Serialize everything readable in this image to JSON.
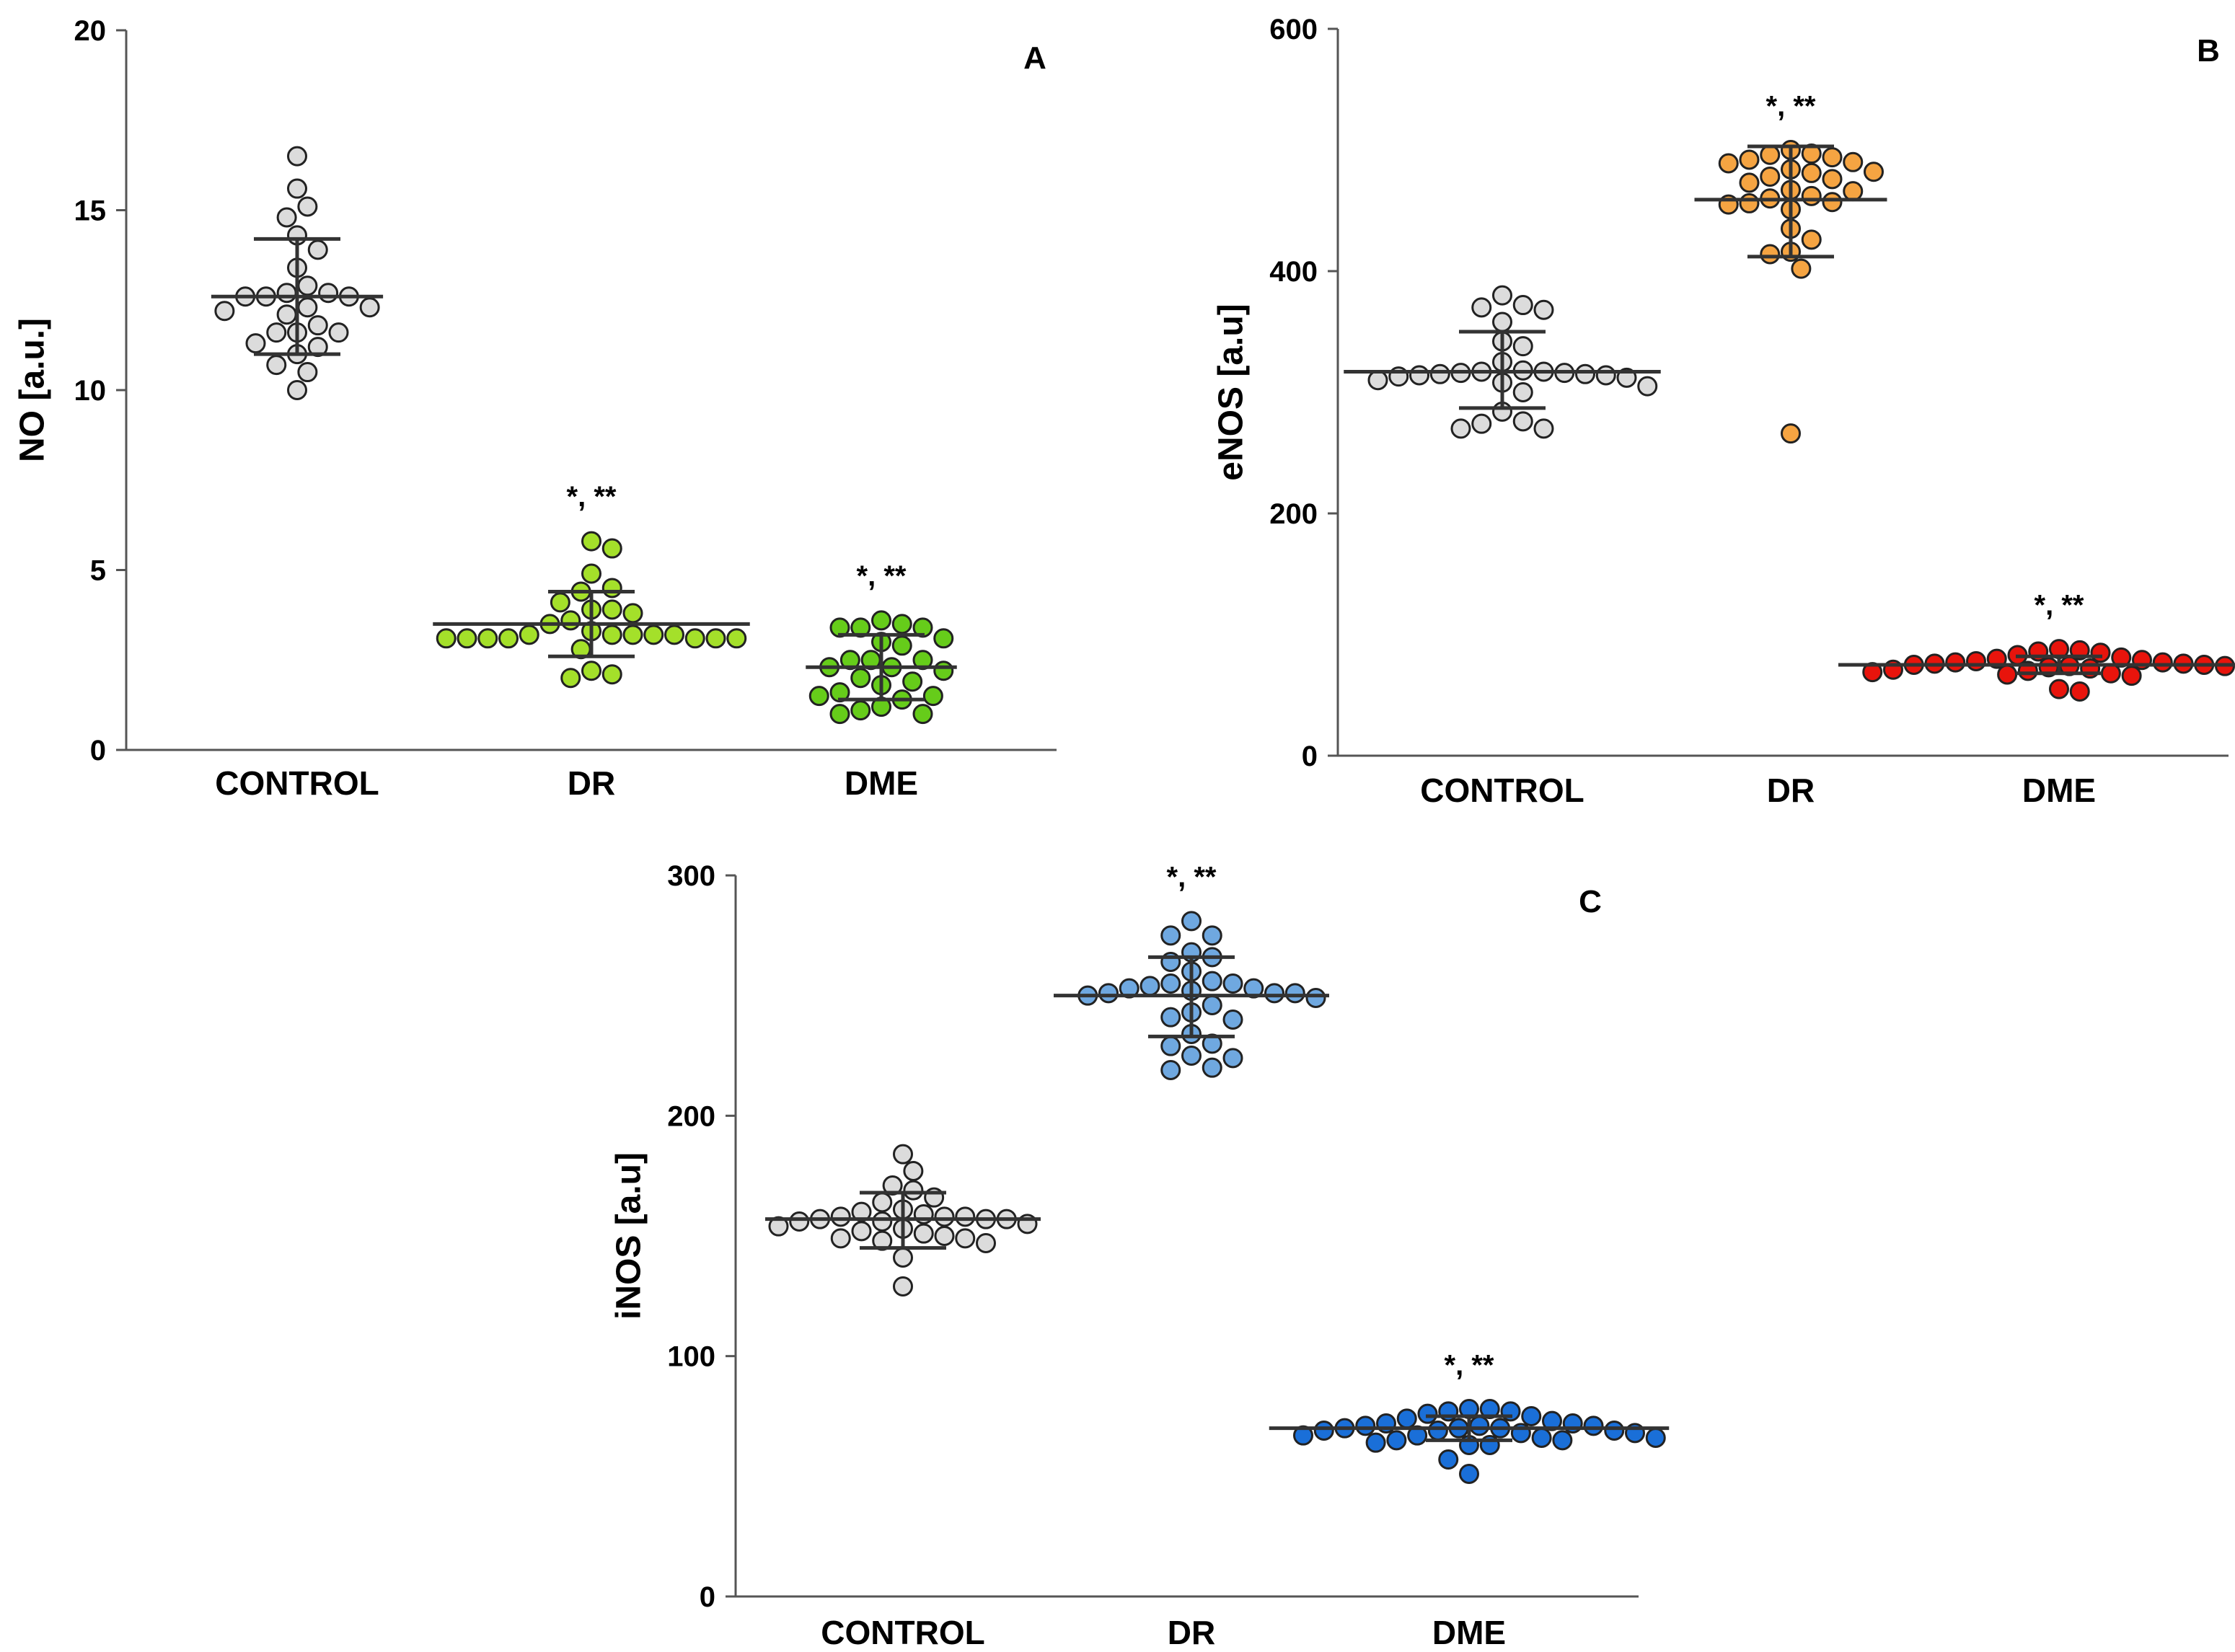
{
  "chart_data": [
    {
      "id": "A",
      "type": "scatter",
      "panel_label": "A",
      "ylabel": "NO [a.u.]",
      "ylim": [
        0,
        20
      ],
      "yticks": [
        "0",
        "5",
        "10",
        "15",
        "20"
      ],
      "categories": [
        "CONTROL",
        "DR",
        "DME"
      ],
      "groups": [
        {
          "name": "CONTROL",
          "color": "#dcdcdc",
          "mean": 12.6,
          "sd_low": 11.0,
          "sd_high": 14.2,
          "sig": "",
          "values": [
            16.5,
            15.6,
            15.1,
            14.8,
            14.3,
            13.9,
            13.4,
            12.9,
            12.7,
            12.7,
            12.6,
            12.6,
            12.6,
            12.3,
            12.3,
            12.2,
            12.1,
            11.8,
            11.6,
            11.6,
            11.6,
            11.3,
            11.2,
            11.0,
            10.7,
            10.5,
            10.0
          ]
        },
        {
          "name": "DR",
          "color": "#a4e02a",
          "mean": 3.5,
          "sd_low": 2.6,
          "sd_high": 4.4,
          "sig": "*,**",
          "values": [
            5.8,
            5.6,
            4.9,
            4.5,
            4.4,
            4.1,
            3.9,
            3.9,
            3.8,
            3.6,
            3.5,
            3.3,
            3.2,
            3.2,
            3.2,
            3.2,
            3.2,
            3.1,
            3.1,
            3.1,
            3.1,
            3.1,
            3.1,
            3.1,
            2.8,
            2.2,
            2.1,
            2.0
          ]
        },
        {
          "name": "DME",
          "color": "#66cc1a",
          "mean": 2.3,
          "sd_low": 1.4,
          "sd_high": 3.2,
          "sig": "*,**",
          "values": [
            3.6,
            3.5,
            3.4,
            3.4,
            3.4,
            3.1,
            3.0,
            2.9,
            2.5,
            2.5,
            2.5,
            2.3,
            2.3,
            2.2,
            2.0,
            1.9,
            1.8,
            1.6,
            1.5,
            1.5,
            1.4,
            1.2,
            1.1,
            1.0,
            1.0
          ]
        }
      ]
    },
    {
      "id": "B",
      "type": "scatter",
      "panel_label": "B",
      "ylabel": "eNOS [a.u]",
      "ylim": [
        0,
        600
      ],
      "yticks": [
        "0",
        "200",
        "400",
        "600"
      ],
      "categories": [
        "CONTROL",
        "DR",
        "DME"
      ],
      "groups": [
        {
          "name": "CONTROL",
          "color": "#dcdcdc",
          "mean": 317,
          "sd_low": 287,
          "sd_high": 350,
          "sig": "",
          "values": [
            380,
            372,
            370,
            368,
            358,
            342,
            338,
            325,
            318,
            317,
            317,
            316,
            316,
            315,
            315,
            314,
            314,
            313,
            312,
            310,
            308,
            305,
            300,
            284,
            276,
            274,
            270,
            270
          ]
        },
        {
          "name": "DR",
          "color": "#f5a442",
          "mean": 459,
          "sd_low": 412,
          "sd_high": 503,
          "sig": "*,**",
          "values": [
            500,
            497,
            496,
            494,
            492,
            490,
            489,
            484,
            482,
            481,
            478,
            476,
            473,
            467,
            466,
            462,
            460,
            457,
            456,
            455,
            451,
            435,
            426,
            416,
            414,
            402,
            266
          ]
        },
        {
          "name": "DME",
          "color": "#e8140c",
          "mean": 75,
          "sd_low": 68,
          "sd_high": 82,
          "sig": "*,**",
          "values": [
            88,
            87,
            86,
            85,
            83,
            81,
            80,
            79,
            78,
            77,
            77,
            76,
            76,
            75,
            75,
            74,
            74,
            73,
            72,
            71,
            70,
            70,
            69,
            68,
            68,
            67,
            66,
            55,
            53
          ]
        }
      ]
    },
    {
      "id": "C",
      "type": "scatter",
      "panel_label": "C",
      "ylabel": "iNOS [a.u]",
      "ylim": [
        0,
        300
      ],
      "yticks": [
        "0",
        "100",
        "200",
        "300"
      ],
      "categories": [
        "CONTROL",
        "DR",
        "DME"
      ],
      "groups": [
        {
          "name": "CONTROL",
          "color": "#dcdcdc",
          "mean": 157,
          "sd_low": 145,
          "sd_high": 168,
          "sig": "",
          "values": [
            184,
            177,
            171,
            169,
            166,
            164,
            161,
            160,
            159,
            158,
            158,
            158,
            157,
            157,
            157,
            156,
            156,
            155,
            154,
            153,
            152,
            151,
            150,
            149,
            149,
            148,
            147,
            141,
            129
          ]
        },
        {
          "name": "DR",
          "color": "#6fa8e0",
          "mean": 250,
          "sd_low": 233,
          "sd_high": 266,
          "sig": "*,**",
          "values": [
            281,
            275,
            275,
            268,
            266,
            264,
            260,
            256,
            255,
            255,
            254,
            253,
            253,
            252,
            251,
            251,
            251,
            250,
            249,
            246,
            243,
            241,
            240,
            234,
            230,
            229,
            225,
            224,
            220,
            219
          ]
        },
        {
          "name": "DME",
          "color": "#1a6fd8",
          "mean": 70,
          "sd_low": 65,
          "sd_high": 75,
          "sig": "*,**",
          "values": [
            78,
            78,
            77,
            77,
            76,
            75,
            74,
            73,
            72,
            72,
            71,
            71,
            71,
            70,
            70,
            70,
            69,
            69,
            69,
            68,
            68,
            67,
            67,
            66,
            66,
            65,
            65,
            64,
            63,
            63,
            57,
            51
          ]
        }
      ]
    }
  ]
}
